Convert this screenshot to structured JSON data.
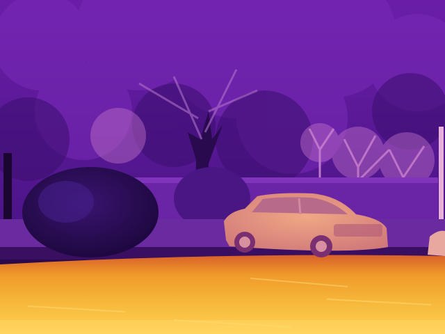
{
  "image": {
    "kind": "thermal-camera-photo",
    "palette": "inferno",
    "subjects": [
      "tree",
      "shrub",
      "car",
      "hedge",
      "road",
      "trees-background",
      "lamp-post"
    ],
    "colors": {
      "cold_dark": "#1a0630",
      "foliage": "#5a1a9a",
      "foliage_light": "#8a3ac0",
      "hedge": "#6a2aa8",
      "warm_pink": "#d070c0",
      "car": "#e0907a",
      "road_hot": "#f0a030",
      "road_hottest": "#ffd060"
    }
  }
}
